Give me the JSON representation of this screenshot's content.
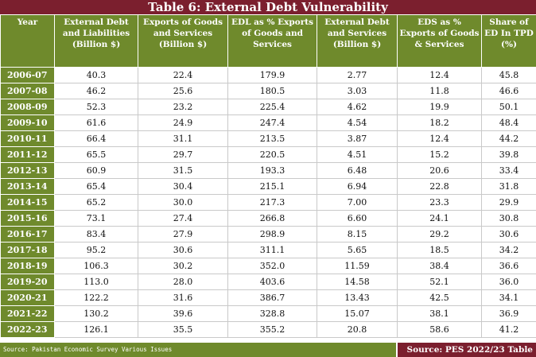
{
  "title": "Table 6: External Debt Vulnerability",
  "headers": [
    "Year",
    "External Debt and Liabilities (Billion $)",
    "Exports of Goods and Services (Billion $)",
    "EDL as % Exports of Goods and Services",
    "External Debt and Services (Billion $)",
    "EDS as % Exports of Goods & Services",
    "Share of ED In TPD (%)"
  ],
  "rows": [
    [
      "2006-07",
      "40.3",
      "22.4",
      "179.9",
      "2.77",
      "12.4",
      "45.8"
    ],
    [
      "2007-08",
      "46.2",
      "25.6",
      "180.5",
      "3.03",
      "11.8",
      "46.6"
    ],
    [
      "2008-09",
      "52.3",
      "23.2",
      "225.4",
      "4.62",
      "19.9",
      "50.1"
    ],
    [
      "2009-10",
      "61.6",
      "24.9",
      "247.4",
      "4.54",
      "18.2",
      "48.4"
    ],
    [
      "2010-11",
      "66.4",
      "31.1",
      "213.5",
      "3.87",
      "12.4",
      "44.2"
    ],
    [
      "2011-12",
      "65.5",
      "29.7",
      "220.5",
      "4.51",
      "15.2",
      "39.8"
    ],
    [
      "2012-13",
      "60.9",
      "31.5",
      "193.3",
      "6.48",
      "20.6",
      "33.4"
    ],
    [
      "2013-14",
      "65.4",
      "30.4",
      "215.1",
      "6.94",
      "22.8",
      "31.8"
    ],
    [
      "2014-15",
      "65.2",
      "30.0",
      "217.3",
      "7.00",
      "23.3",
      "29.9"
    ],
    [
      "2015-16",
      "73.1",
      "27.4",
      "266.8",
      "6.60",
      "24.1",
      "30.8"
    ],
    [
      "2016-17",
      "83.4",
      "27.9",
      "298.9",
      "8.15",
      "29.2",
      "30.6"
    ],
    [
      "2017-18",
      "95.2",
      "30.6",
      "311.1",
      "5.65",
      "18.5",
      "34.2"
    ],
    [
      "2018-19",
      "106.3",
      "30.2",
      "352.0",
      "11.59",
      "38.4",
      "36.6"
    ],
    [
      "2019-20",
      "113.0",
      "28.0",
      "403.6",
      "14.58",
      "52.1",
      "36.0"
    ],
    [
      "2020-21",
      "122.2",
      "31.6",
      "386.7",
      "13.43",
      "42.5",
      "34.1"
    ],
    [
      "2021-22",
      "130.2",
      "39.6",
      "328.8",
      "15.07",
      "38.1",
      "36.9"
    ],
    [
      "2022-23",
      "126.1",
      "35.5",
      "355.2",
      "20.8",
      "58.6",
      "41.2"
    ]
  ],
  "footer": {
    "left": "Source: Pakistan Economic Survey Various Issues",
    "right": "Source: PES 2022/23 Table"
  },
  "colors": {
    "header_green": "#6f8a2c",
    "title_maroon": "#7b1f2e"
  }
}
